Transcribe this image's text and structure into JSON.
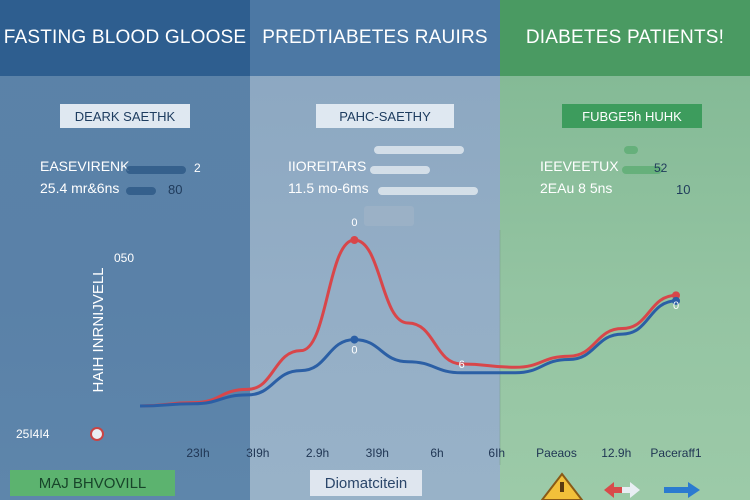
{
  "headers": [
    {
      "title": "FASTING BLOOD GLOOSE",
      "color": "#2e5e8f"
    },
    {
      "title": "PREDTIABETES RAUIRS",
      "color": "#4c78a4"
    },
    {
      "title": "DIABETES PATIENTS!",
      "color": "#4a9a62"
    }
  ],
  "badges": [
    "DEARK SAETHK",
    "PAHC-SAETHY",
    "FUBGE5h HUHK"
  ],
  "stats": [
    {
      "name": "EASEVIRENK",
      "value": "25.4 mr&6ns",
      "num_a": "2",
      "num_b": "80"
    },
    {
      "name": "IIOREITARS",
      "value": "11.5 mo-6ms",
      "num_a": "",
      "num_b": ""
    },
    {
      "name": "IEEVEETUX",
      "value": "2EAu 8 5ns",
      "num_a": "52",
      "num_b": "10"
    }
  ],
  "chart_data": {
    "type": "line",
    "ylabel": "HAIH INRNIJVELL",
    "y_top_label": "050",
    "y_bottom_label": "25I4I4",
    "x_tick_labels": [
      "23Ih",
      "3I9h",
      "2.9h",
      "3I9h",
      "6h",
      "6Ih",
      "Paeaos",
      "12.9h",
      "Paceraff1"
    ],
    "x": [
      0,
      1,
      2,
      3,
      4,
      5,
      6,
      7,
      8,
      9,
      10
    ],
    "series": [
      {
        "color": "#d8464a",
        "values": [
          0.0,
          0.3,
          1.5,
          5.0,
          15.0,
          7.5,
          3.8,
          3.5,
          4.5,
          7.0,
          10.0
        ]
      },
      {
        "color": "#2b5fa5",
        "values": [
          0.0,
          0.2,
          1.0,
          3.2,
          6.0,
          4.0,
          3.0,
          3.0,
          4.2,
          6.5,
          9.5
        ]
      }
    ],
    "point_labels": [
      "0",
      "0",
      "6",
      "0"
    ],
    "grid": false,
    "legend": "none"
  },
  "footers": [
    "MAJ BHVOVILL",
    "Diomatcitein"
  ],
  "colors": {
    "blue_panel": "#5a81a8",
    "mid_panel": "#94aec6",
    "green_panel": "#94c4a2"
  }
}
